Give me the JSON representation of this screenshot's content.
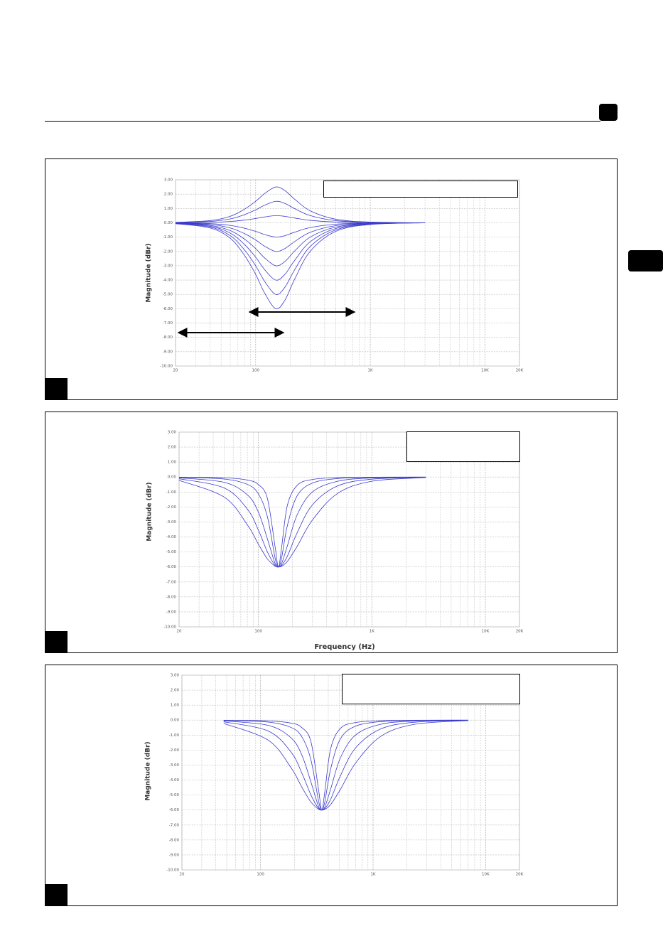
{
  "chart_data": [
    {
      "type": "line",
      "y_label": "Magnitude (dBr)",
      "log_x": true,
      "grid": true,
      "color": "#3b3bcc",
      "xlim": [
        20,
        20000
      ],
      "xticks": [
        20,
        100,
        {
          "value": 1000,
          "label": "1K"
        },
        {
          "value": 10000,
          "label": "10K"
        },
        {
          "value": 20000,
          "label": "20K"
        }
      ],
      "minor_xticks": [
        30,
        40,
        50,
        60,
        70,
        80,
        90,
        200,
        300,
        400,
        500,
        600,
        700,
        800,
        900,
        2000,
        3000,
        4000,
        5000,
        6000,
        7000,
        8000,
        9000
      ],
      "ylim": [
        -10,
        3
      ],
      "yticks": [
        {
          "value": 3,
          "label": "3.00"
        },
        {
          "value": 2,
          "label": "2.00"
        },
        {
          "value": 1,
          "label": "1.00"
        },
        {
          "value": 0,
          "label": "0.00"
        },
        {
          "value": -1,
          "label": "-1.00"
        },
        {
          "value": -2,
          "label": "-2.00"
        },
        {
          "value": -3,
          "label": "-3.00"
        },
        {
          "value": -4,
          "label": "-4.00"
        },
        {
          "value": -5,
          "label": "-5.00"
        },
        {
          "value": -6,
          "label": "-6.00"
        },
        {
          "value": -7,
          "label": "-7.00"
        },
        {
          "value": -8,
          "label": "-8.00"
        },
        {
          "value": -9,
          "label": "-9.00"
        },
        {
          "value": -10,
          "label": "-10.00"
        }
      ],
      "x": [
        20,
        40,
        60,
        80,
        100,
        120,
        150,
        180,
        220,
        300,
        500,
        1000,
        3000
      ],
      "series": [
        {
          "values": [
            0.03,
            0.15,
            0.45,
            0.95,
            1.5,
            2.05,
            2.5,
            2.25,
            1.63,
            0.83,
            0.25,
            0.05,
            0
          ]
        },
        {
          "values": [
            0.02,
            0.09,
            0.27,
            0.57,
            0.9,
            1.23,
            1.5,
            1.35,
            0.98,
            0.5,
            0.15,
            0.03,
            0
          ]
        },
        {
          "values": [
            0.01,
            0.03,
            0.09,
            0.19,
            0.3,
            0.41,
            0.5,
            0.45,
            0.33,
            0.17,
            0.05,
            0.01,
            0
          ]
        },
        {
          "values": [
            -0.01,
            -0.06,
            -0.18,
            -0.38,
            -0.6,
            -0.82,
            -1,
            -0.9,
            -0.65,
            -0.33,
            -0.1,
            -0.02,
            0
          ]
        },
        {
          "values": [
            -0.02,
            -0.12,
            -0.36,
            -0.76,
            -1.2,
            -1.64,
            -2,
            -1.8,
            -1.3,
            -0.66,
            -0.2,
            -0.04,
            0
          ]
        },
        {
          "values": [
            -0.03,
            -0.18,
            -0.54,
            -1.14,
            -1.8,
            -2.46,
            -3,
            -2.7,
            -1.95,
            -0.99,
            -0.3,
            -0.06,
            0
          ]
        },
        {
          "values": [
            -0.04,
            -0.24,
            -0.72,
            -1.52,
            -2.4,
            -3.28,
            -4,
            -3.6,
            -2.6,
            -1.32,
            -0.4,
            -0.08,
            0
          ]
        },
        {
          "values": [
            -0.05,
            -0.3,
            -0.9,
            -1.9,
            -3,
            -4.1,
            -5,
            -4.5,
            -3.25,
            -1.65,
            -0.5,
            -0.1,
            0
          ]
        },
        {
          "values": [
            -0.06,
            -0.36,
            -1.08,
            -2.28,
            -3.6,
            -4.92,
            -6,
            -5.4,
            -3.9,
            -1.98,
            -0.6,
            -0.12,
            0
          ]
        }
      ]
    },
    {
      "type": "line",
      "y_label": "Magnitude (dBr)",
      "x_label": "Frequency (Hz)",
      "log_x": true,
      "grid": true,
      "color": "#3b3bcc",
      "xlim": [
        20,
        20000
      ],
      "xticks": [
        20,
        100,
        {
          "value": 1000,
          "label": "1K"
        },
        {
          "value": 10000,
          "label": "10K"
        },
        {
          "value": 20000,
          "label": "20K"
        }
      ],
      "minor_xticks": [
        30,
        40,
        50,
        60,
        70,
        80,
        90,
        200,
        300,
        400,
        500,
        600,
        700,
        800,
        900,
        2000,
        3000,
        4000,
        5000,
        6000,
        7000,
        8000,
        9000
      ],
      "ylim": [
        -10,
        3
      ],
      "yticks": [
        {
          "value": 3,
          "label": "3.00"
        },
        {
          "value": 2,
          "label": "2.00"
        },
        {
          "value": 1,
          "label": "1.00"
        },
        {
          "value": 0,
          "label": "0.00"
        },
        {
          "value": -1,
          "label": "-1.00"
        },
        {
          "value": -2,
          "label": "-2.00"
        },
        {
          "value": -3,
          "label": "-3.00"
        },
        {
          "value": -4,
          "label": "-4.00"
        },
        {
          "value": -5,
          "label": "-5.00"
        },
        {
          "value": -6,
          "label": "-6.00"
        },
        {
          "value": -7,
          "label": "-7.00"
        },
        {
          "value": -8,
          "label": "-8.00"
        },
        {
          "value": -9,
          "label": "-9.00"
        },
        {
          "value": -10,
          "label": "-10.00"
        }
      ],
      "x": [
        20,
        50,
        80,
        100,
        120,
        140,
        150,
        160,
        180,
        220,
        300,
        500,
        1000,
        3000
      ],
      "series": [
        {
          "values": [
            -0.22,
            -1.34,
            -3.19,
            -4.48,
            -5.46,
            -5.94,
            -6,
            -5.95,
            -5.63,
            -4.62,
            -2.86,
            -1.09,
            -0.28,
            -0.03
          ]
        },
        {
          "values": [
            -0.11,
            -0.73,
            -2.14,
            -3.54,
            -4.99,
            -5.89,
            -6,
            -5.9,
            -5.29,
            -3.71,
            -1.85,
            -0.59,
            -0.14,
            -0.02
          ]
        },
        {
          "values": [
            -0.05,
            -0.35,
            -1.19,
            -2.34,
            -4.12,
            -5.75,
            -6,
            -5.79,
            -4.6,
            -2.51,
            -0.99,
            -0.28,
            -0.06,
            -0.01
          ]
        },
        {
          "values": [
            -0.02,
            -0.13,
            -0.49,
            -1.12,
            -2.64,
            -5.36,
            -6,
            -5.43,
            -3.25,
            -1.24,
            -0.4,
            -0.1,
            -0.02,
            0
          ]
        },
        {
          "values": [
            -0.01,
            -0.05,
            -0.2,
            -0.5,
            -1.42,
            -4.6,
            -6,
            -4.74,
            -1.9,
            -0.55,
            -0.16,
            -0.04,
            -0.01,
            0
          ]
        }
      ]
    },
    {
      "type": "line",
      "y_label": "Magnitude (dBr)",
      "log_x": true,
      "grid": true,
      "color": "#3b3bcc",
      "xlim": [
        20,
        20000
      ],
      "xticks": [
        20,
        100,
        {
          "value": 1000,
          "label": "1K"
        },
        {
          "value": 10000,
          "label": "10K"
        },
        {
          "value": 20000,
          "label": "20K"
        }
      ],
      "minor_xticks": [
        30,
        40,
        50,
        60,
        70,
        80,
        90,
        200,
        300,
        400,
        500,
        600,
        700,
        800,
        900,
        2000,
        3000,
        4000,
        5000,
        6000,
        7000,
        8000,
        9000
      ],
      "ylim": [
        -10,
        3
      ],
      "yticks": [
        {
          "value": 3,
          "label": "3.00"
        },
        {
          "value": 2,
          "label": "2.00"
        },
        {
          "value": 1,
          "label": "1.00"
        },
        {
          "value": 0,
          "label": "0.00"
        },
        {
          "value": -1,
          "label": "-1.00"
        },
        {
          "value": -2,
          "label": "-2.00"
        },
        {
          "value": -3,
          "label": "-3.00"
        },
        {
          "value": -4,
          "label": "-4.00"
        },
        {
          "value": -5,
          "label": "-5.00"
        },
        {
          "value": -6,
          "label": "-6.00"
        },
        {
          "value": -7,
          "label": "-7.00"
        },
        {
          "value": -8,
          "label": "-8.00"
        },
        {
          "value": -9,
          "label": "-9.00"
        },
        {
          "value": -10,
          "label": "-10.00"
        }
      ],
      "x": [
        47,
        117,
        187,
        233,
        280,
        327,
        350,
        373,
        420,
        513,
        700,
        1167,
        2333,
        7000
      ],
      "series": [
        {
          "values": [
            -0.22,
            -1.34,
            -3.19,
            -4.48,
            -5.46,
            -5.94,
            -6,
            -5.95,
            -5.63,
            -4.62,
            -2.86,
            -1.09,
            -0.28,
            -0.03
          ]
        },
        {
          "values": [
            -0.11,
            -0.73,
            -2.14,
            -3.54,
            -4.99,
            -5.89,
            -6,
            -5.9,
            -5.29,
            -3.71,
            -1.85,
            -0.59,
            -0.14,
            -0.02
          ]
        },
        {
          "values": [
            -0.05,
            -0.35,
            -1.19,
            -2.34,
            -4.12,
            -5.75,
            -6,
            -5.79,
            -4.6,
            -2.51,
            -0.99,
            -0.28,
            -0.06,
            -0.01
          ]
        },
        {
          "values": [
            -0.02,
            -0.13,
            -0.49,
            -1.12,
            -2.64,
            -5.36,
            -6,
            -5.43,
            -3.25,
            -1.24,
            -0.4,
            -0.1,
            -0.02,
            0
          ]
        },
        {
          "values": [
            -0.01,
            -0.05,
            -0.2,
            -0.5,
            -1.42,
            -4.6,
            -6,
            -4.74,
            -1.9,
            -0.55,
            -0.16,
            -0.04,
            -0.01,
            0
          ]
        }
      ]
    }
  ]
}
